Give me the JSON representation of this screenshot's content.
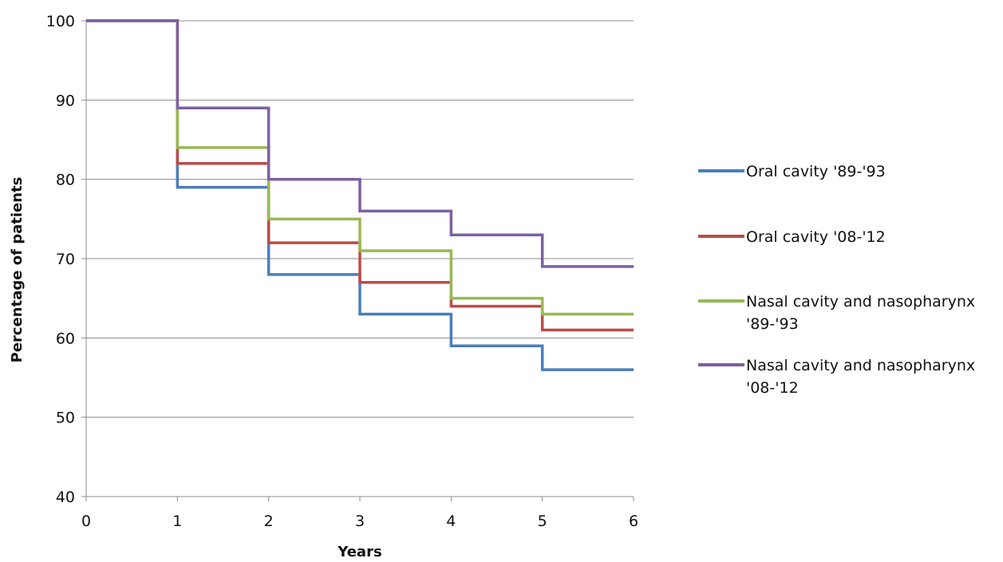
{
  "chart_data": {
    "type": "line",
    "step": true,
    "title": "",
    "xlabel": "Years",
    "ylabel": "Percentage of patients",
    "xlim": [
      0,
      6
    ],
    "ylim": [
      40,
      100
    ],
    "x_ticks": [
      0,
      1,
      2,
      3,
      4,
      5,
      6
    ],
    "y_ticks": [
      40,
      50,
      60,
      70,
      80,
      90,
      100
    ],
    "grid": {
      "horizontal": true,
      "vertical": false
    },
    "legend_position": "right",
    "x": [
      0,
      1,
      2,
      3,
      4,
      5,
      6
    ],
    "series": [
      {
        "name": "Oral cavity '89-'93",
        "legend_lines": [
          "Oral cavity '89-'93"
        ],
        "color": "#4a7ebb",
        "values": [
          100,
          79,
          68,
          63,
          59,
          56,
          56
        ]
      },
      {
        "name": "Oral cavity '08-'12",
        "legend_lines": [
          "Oral cavity '08-'12"
        ],
        "color": "#be4b48",
        "values": [
          100,
          82,
          72,
          67,
          64,
          61,
          61
        ]
      },
      {
        "name": "Nasal cavity and nasopharynx '89-'93",
        "legend_lines": [
          "Nasal cavity and nasopharynx",
          "'89-'93"
        ],
        "color": "#98b954",
        "values": [
          100,
          84,
          75,
          71,
          65,
          63,
          63
        ]
      },
      {
        "name": "Nasal cavity and nasopharynx '08-'12",
        "legend_lines": [
          "Nasal cavity and nasopharynx",
          "'08-'12"
        ],
        "color": "#7d60a0",
        "values": [
          100,
          89,
          80,
          76,
          73,
          69,
          69
        ]
      }
    ]
  }
}
